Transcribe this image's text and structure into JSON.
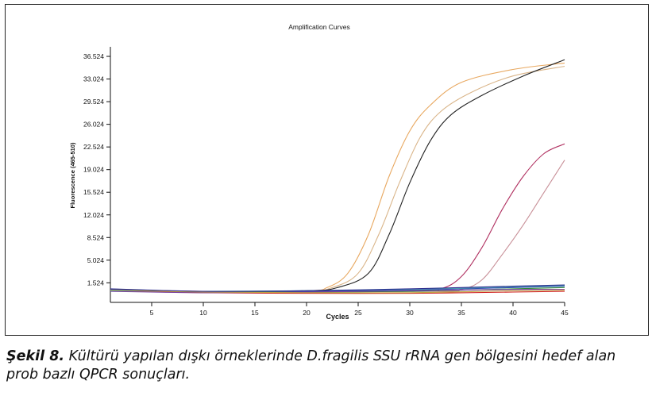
{
  "figure": {
    "caption_label": "Şekil 8.",
    "caption_text": " Kültürü yapılan dışkı örneklerinde D.fragilis SSU rRNA gen bölgesini hedef alan prob bazlı QPCR sonuçları."
  },
  "chart_data": {
    "type": "line",
    "title": "Amplification Curves",
    "xlabel": "Cycles",
    "ylabel": "Fluorescence (465-510)",
    "xlim": [
      1,
      45
    ],
    "ylim": [
      -1.5,
      38
    ],
    "grid": false,
    "x_ticks": [
      5,
      10,
      15,
      20,
      25,
      30,
      35,
      40,
      45
    ],
    "y_ticks": [
      "1.524",
      "5.024",
      "8.524",
      "12.024",
      "15.524",
      "19.024",
      "22.524",
      "26.024",
      "29.524",
      "33.024",
      "36.524"
    ],
    "y_tick_values": [
      1.524,
      5.024,
      8.524,
      12.024,
      15.524,
      19.024,
      22.524,
      26.024,
      29.524,
      33.024,
      36.524
    ],
    "series": [
      {
        "color": "#e8a860",
        "points": [
          [
            1,
            0.5
          ],
          [
            10,
            0.2
          ],
          [
            20,
            0.3
          ],
          [
            22,
            0.8
          ],
          [
            24,
            3
          ],
          [
            26,
            9
          ],
          [
            28,
            18
          ],
          [
            30,
            25
          ],
          [
            32,
            29
          ],
          [
            35,
            32.5
          ],
          [
            40,
            34.5
          ],
          [
            45,
            35.5
          ]
        ]
      },
      {
        "color": "#d9b488",
        "points": [
          [
            1,
            0.5
          ],
          [
            10,
            0.2
          ],
          [
            20,
            0.3
          ],
          [
            22.5,
            0.8
          ],
          [
            25,
            3
          ],
          [
            27,
            9
          ],
          [
            29,
            17
          ],
          [
            31,
            24
          ],
          [
            33,
            28
          ],
          [
            36,
            31
          ],
          [
            40,
            33.5
          ],
          [
            45,
            35
          ]
        ]
      },
      {
        "color": "#222222",
        "points": [
          [
            1,
            0.5
          ],
          [
            10,
            0.2
          ],
          [
            20,
            0.3
          ],
          [
            23,
            0.8
          ],
          [
            26,
            3
          ],
          [
            28,
            9
          ],
          [
            30,
            17
          ],
          [
            32,
            23.5
          ],
          [
            34,
            27.5
          ],
          [
            37,
            30.5
          ],
          [
            41,
            33.5
          ],
          [
            45,
            36
          ]
        ]
      },
      {
        "color": "#b03060",
        "points": [
          [
            1,
            0.5
          ],
          [
            10,
            0.2
          ],
          [
            30,
            0.2
          ],
          [
            33,
            0.6
          ],
          [
            35,
            2.5
          ],
          [
            37,
            7
          ],
          [
            39,
            13
          ],
          [
            41,
            18
          ],
          [
            43,
            21.5
          ],
          [
            45,
            23
          ]
        ]
      },
      {
        "color": "#c89098",
        "points": [
          [
            1,
            0.5
          ],
          [
            10,
            0.2
          ],
          [
            32,
            0.2
          ],
          [
            35,
            0.5
          ],
          [
            37,
            2
          ],
          [
            39,
            6
          ],
          [
            41,
            10.5
          ],
          [
            43,
            15.5
          ],
          [
            45,
            20.5
          ]
        ]
      },
      {
        "color": "#2a3fb0",
        "points": [
          [
            1,
            0.5
          ],
          [
            10,
            0.1
          ],
          [
            20,
            0.2
          ],
          [
            30,
            0.4
          ],
          [
            40,
            0.8
          ],
          [
            45,
            1.0
          ]
        ]
      },
      {
        "color": "#2e8b3a",
        "points": [
          [
            1,
            0.4
          ],
          [
            10,
            0.1
          ],
          [
            20,
            0.1
          ],
          [
            30,
            0.2
          ],
          [
            40,
            0.6
          ],
          [
            45,
            0.8
          ]
        ]
      },
      {
        "color": "#d02020",
        "points": [
          [
            1,
            0.3
          ],
          [
            10,
            0.0
          ],
          [
            20,
            -0.1
          ],
          [
            30,
            -0.1
          ],
          [
            40,
            0.1
          ],
          [
            45,
            0.2
          ]
        ]
      },
      {
        "color": "#7a3fa0",
        "points": [
          [
            1,
            0.2
          ],
          [
            10,
            0.0
          ],
          [
            20,
            0.1
          ],
          [
            30,
            0.3
          ],
          [
            40,
            0.5
          ],
          [
            45,
            0.5
          ]
        ]
      },
      {
        "color": "#4aa0b0",
        "points": [
          [
            1,
            0.3
          ],
          [
            10,
            0.2
          ],
          [
            20,
            0.3
          ],
          [
            30,
            0.5
          ],
          [
            40,
            0.9
          ],
          [
            45,
            1.1
          ]
        ]
      },
      {
        "color": "#c0a040",
        "points": [
          [
            1,
            0.4
          ],
          [
            10,
            0.1
          ],
          [
            20,
            0.0
          ],
          [
            30,
            0.0
          ],
          [
            40,
            0.3
          ],
          [
            45,
            0.4
          ]
        ]
      },
      {
        "color": "#303090",
        "points": [
          [
            1,
            0.6
          ],
          [
            10,
            0.2
          ],
          [
            20,
            0.3
          ],
          [
            30,
            0.6
          ],
          [
            40,
            1.0
          ],
          [
            45,
            1.2
          ]
        ]
      }
    ]
  }
}
